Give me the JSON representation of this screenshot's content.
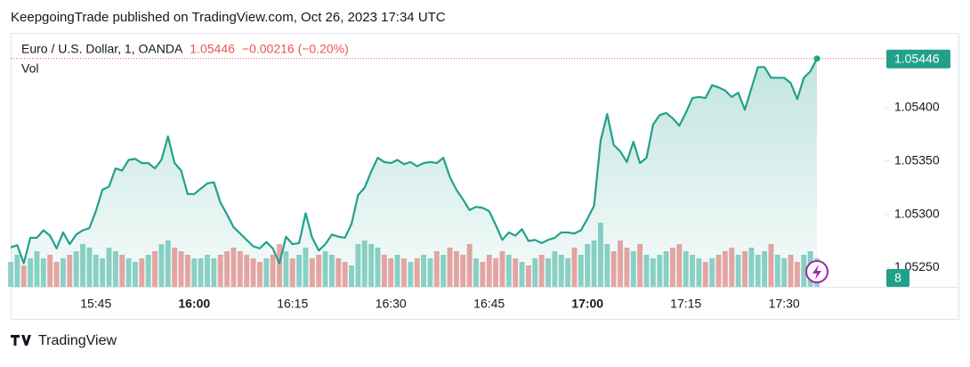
{
  "header": {
    "title": "KeepgoingTrade published on TradingView.com, Oct 26, 2023 17:34 UTC"
  },
  "footer": {
    "brand": "TradingView"
  },
  "chart_data": {
    "type": "line",
    "title": "Euro / U.S. Dollar, 1, OANDA",
    "change": "−0.00216 (−0.20%)",
    "volume_label": "Vol",
    "categories": [
      null,
      null,
      null,
      null,
      null,
      null,
      null,
      null,
      null,
      null,
      null,
      null,
      null,
      "15:45",
      null,
      null,
      null,
      null,
      null,
      null,
      null,
      null,
      null,
      null,
      null,
      null,
      null,
      null,
      "16:00",
      null,
      null,
      null,
      null,
      null,
      null,
      null,
      null,
      null,
      null,
      null,
      null,
      null,
      null,
      "16:15",
      null,
      null,
      null,
      null,
      null,
      null,
      null,
      null,
      null,
      null,
      null,
      null,
      null,
      null,
      "16:30",
      null,
      null,
      null,
      null,
      null,
      null,
      null,
      null,
      null,
      null,
      null,
      null,
      null,
      null,
      "16:45",
      null,
      null,
      null,
      null,
      null,
      null,
      null,
      null,
      null,
      null,
      null,
      null,
      null,
      null,
      "17:00",
      null,
      null,
      null,
      null,
      null,
      null,
      null,
      null,
      null,
      null,
      null,
      null,
      null,
      null,
      "17:15",
      null,
      null,
      null,
      null,
      null,
      null,
      null,
      null,
      null,
      null,
      null,
      null,
      null,
      null,
      "17:30",
      null,
      null,
      null,
      null,
      null
    ],
    "series": [
      {
        "name": "Price",
        "color": "#22a08b",
        "values": [
          1.05269,
          1.05271,
          1.05254,
          1.05278,
          1.05278,
          1.05285,
          1.0528,
          1.05268,
          1.05283,
          1.05272,
          1.05281,
          1.05285,
          1.05287,
          1.05303,
          1.05323,
          1.05326,
          1.05343,
          1.05341,
          1.05351,
          1.05352,
          1.05348,
          1.05348,
          1.05343,
          1.05351,
          1.05373,
          1.05348,
          1.05341,
          1.05319,
          1.05319,
          1.05324,
          1.05329,
          1.0533,
          1.05311,
          1.053,
          1.05288,
          1.05282,
          1.05276,
          1.0527,
          1.05268,
          1.05274,
          1.05268,
          1.05254,
          1.05279,
          1.05272,
          1.05273,
          1.05301,
          1.05278,
          1.05266,
          1.05272,
          1.05281,
          1.05279,
          1.05278,
          1.05291,
          1.05318,
          1.05325,
          1.0534,
          1.05353,
          1.05349,
          1.05348,
          1.05351,
          1.05347,
          1.05349,
          1.05345,
          1.05348,
          1.05349,
          1.05348,
          1.05353,
          1.05335,
          1.05323,
          1.05314,
          1.05304,
          1.05307,
          1.05306,
          1.05303,
          1.0529,
          1.05276,
          1.05283,
          1.0528,
          1.05286,
          1.05275,
          1.05276,
          1.05273,
          1.05276,
          1.05278,
          1.05283,
          1.05283,
          1.05282,
          1.05285,
          1.05296,
          1.05308,
          1.05369,
          1.05394,
          1.05365,
          1.05359,
          1.05349,
          1.05368,
          1.05348,
          1.05353,
          1.05384,
          1.05393,
          1.05395,
          1.0539,
          1.05383,
          1.05395,
          1.05409,
          1.0541,
          1.05409,
          1.05421,
          1.05419,
          1.05416,
          1.0541,
          1.05414,
          1.05398,
          1.05418,
          1.05438,
          1.05438,
          1.05428,
          1.05428,
          1.05428,
          1.05423,
          1.05408,
          1.05428,
          1.05434,
          1.05446
        ]
      },
      {
        "name": "Vol",
        "up_color": "#8fd3c7",
        "down_color": "#efa5a3",
        "values": [
          7,
          9,
          6,
          8,
          10,
          8,
          9,
          7,
          8,
          9,
          10,
          12,
          11,
          9,
          8,
          11,
          10,
          9,
          8,
          7,
          8,
          9,
          10,
          12,
          13,
          11,
          10,
          9,
          8,
          8,
          9,
          8,
          9,
          10,
          11,
          10,
          9,
          8,
          7,
          8,
          9,
          12,
          10,
          8,
          9,
          11,
          8,
          9,
          10,
          9,
          8,
          7,
          6,
          12,
          13,
          12,
          11,
          9,
          8,
          9,
          8,
          7,
          8,
          9,
          8,
          10,
          9,
          11,
          10,
          9,
          12,
          8,
          7,
          9,
          8,
          10,
          9,
          8,
          7,
          6,
          8,
          9,
          8,
          10,
          9,
          8,
          11,
          9,
          12,
          13,
          18,
          12,
          10,
          13,
          11,
          10,
          12,
          9,
          8,
          9,
          10,
          11,
          12,
          10,
          9,
          8,
          7,
          8,
          9,
          10,
          11,
          9,
          10,
          11,
          9,
          10,
          12,
          9,
          8,
          9,
          7,
          9,
          10,
          8
        ]
      }
    ],
    "ylim": [
      1.05232,
      1.0547
    ],
    "yticks": [
      {
        "value": 1.0525,
        "label": "1.05250"
      },
      {
        "value": 1.053,
        "label": "1.05300"
      },
      {
        "value": 1.0535,
        "label": "1.05350"
      },
      {
        "value": 1.054,
        "label": "1.05400"
      }
    ]
  }
}
